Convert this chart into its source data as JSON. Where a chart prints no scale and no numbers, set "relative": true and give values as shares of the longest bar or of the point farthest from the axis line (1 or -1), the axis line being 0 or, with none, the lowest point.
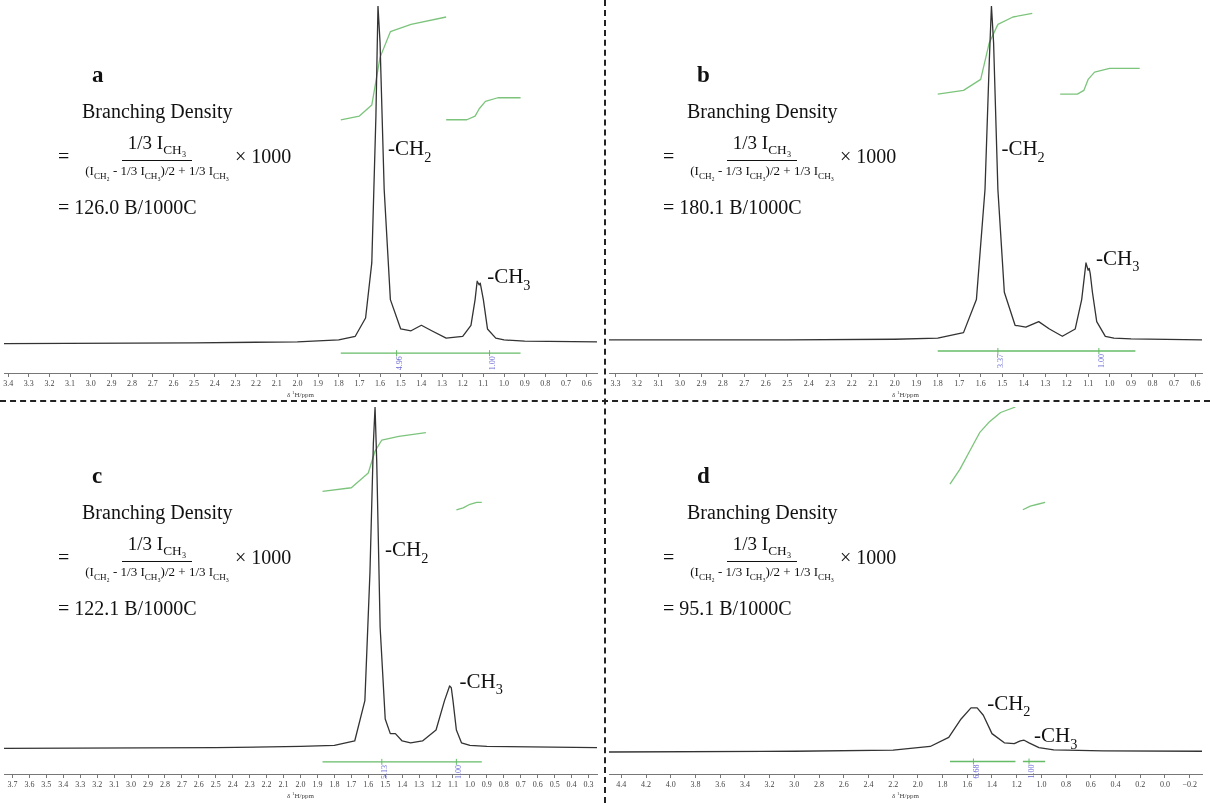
{
  "chart_data": [
    {
      "type": "line",
      "title": "a",
      "xlabel": "δ $^{1}$H/ppm",
      "relative": true,
      "marker": "none",
      "tick_labels": "x",
      "xlim": [
        3.42,
        0.55
      ],
      "xticks": [
        3.4,
        3.3,
        3.2,
        3.1,
        {
          "value": 3,
          "label": "3.0"
        },
        2.9,
        2.8,
        2.7,
        2.6,
        2.5,
        2.4,
        2.3,
        2.2,
        2.1,
        {
          "value": 2,
          "label": "2.0"
        },
        1.9,
        1.8,
        1.7,
        1.6,
        1.5,
        1.4,
        1.3,
        1.2,
        1.1,
        {
          "value": 1,
          "label": "1.0"
        },
        0.9,
        0.8,
        0.7,
        0.6
      ],
      "annotations": [
        "Branching Density",
        "=",
        "1/3 I$_{CH₃}$",
        "(I$_{CH₂}$ - 1/3 I$_{CH₃}$)/2 + 1/3 I$_{CH₃}$",
        "× 1000",
        "= 126.0 B/1000C",
        "-CH$_{2}$",
        "-CH$_{3}$",
        "4.96",
        "1.00"
      ],
      "series": [
        {
          "type": "line",
          "color": "#333333",
          "x": [
            3.42,
            2.5,
            2.0,
            1.8,
            1.72,
            1.67,
            1.64,
            1.62,
            1.61,
            1.6,
            1.58,
            1.55,
            1.5,
            1.45,
            1.4,
            1.35,
            1.28,
            1.2,
            1.16,
            1.14,
            1.13,
            1.12,
            1.115,
            1.11,
            1.1,
            1.08,
            1.04,
            1.0,
            0.9,
            0.55
          ],
          "values": [
            0.08,
            0.082,
            0.085,
            0.09,
            0.1,
            0.15,
            0.3,
            0.7,
            1,
            0.9,
            0.5,
            0.2,
            0.12,
            0.115,
            0.13,
            0.115,
            0.095,
            0.1,
            0.13,
            0.2,
            0.25,
            0.24,
            0.245,
            0.23,
            0.2,
            0.12,
            0.095,
            0.09,
            0.087,
            0.085
          ]
        },
        {
          "type": "line",
          "color": "#7cc47c",
          "x": [
            1.79,
            1.7,
            1.64,
            1.6,
            1.55,
            1.45,
            1.28
          ],
          "values": [
            0.69,
            0.7,
            0.73,
            0.86,
            0.93,
            0.95,
            0.97
          ]
        },
        {
          "type": "line",
          "color": "#7cc47c",
          "x": [
            1.28,
            1.18,
            1.14,
            1.12,
            1.09,
            1.03,
            0.92
          ],
          "values": [
            0.69,
            0.69,
            0.7,
            0.72,
            0.74,
            0.75,
            0.75
          ]
        },
        {
          "type": "line",
          "color": "#66bb66",
          "x": [
            1.79,
            1.52,
            1.25,
            1.07,
            0.92
          ],
          "values": [
            0.054,
            0.054,
            0.054,
            0.054,
            0.054
          ]
        }
      ]
    },
    {
      "type": "line",
      "title": "b",
      "xlabel": "δ $^{1}$H/ppm",
      "relative": true,
      "marker": "none",
      "tick_labels": "x",
      "xlim": [
        3.33,
        0.57
      ],
      "xticks": [
        3.3,
        3.2,
        3.1,
        {
          "value": 3,
          "label": "3.0"
        },
        2.9,
        2.8,
        2.7,
        2.6,
        2.5,
        2.4,
        2.3,
        2.2,
        2.1,
        {
          "value": 2,
          "label": "2.0"
        },
        1.9,
        1.8,
        1.7,
        1.6,
        1.5,
        1.4,
        1.3,
        1.2,
        1.1,
        {
          "value": 1,
          "label": "1.0"
        },
        0.9,
        0.8,
        0.7,
        0.6
      ],
      "annotations": [
        "Branching Density",
        "=",
        "1/3 I$_{CH₃}$",
        "(I$_{CH₂}$ - 1/3 I$_{CH₃}$)/2 + 1/3 I$_{CH₃}$",
        "× 1000",
        "= 180.1 B/1000C",
        "-CH$_{2}$",
        "-CH$_{3}$",
        "3.37",
        "1.00"
      ],
      "series": [
        {
          "type": "line",
          "color": "#333333",
          "x": [
            3.33,
            2.5,
            2.0,
            1.8,
            1.68,
            1.62,
            1.58,
            1.56,
            1.55,
            1.54,
            1.52,
            1.49,
            1.44,
            1.39,
            1.33,
            1.28,
            1.22,
            1.16,
            1.13,
            1.11,
            1.1,
            1.095,
            1.09,
            1.08,
            1.06,
            1.02,
            0.98,
            0.9,
            0.57
          ],
          "values": [
            0.09,
            0.09,
            0.092,
            0.095,
            0.11,
            0.2,
            0.5,
            0.85,
            1,
            0.9,
            0.5,
            0.22,
            0.13,
            0.125,
            0.14,
            0.12,
            0.1,
            0.12,
            0.2,
            0.3,
            0.28,
            0.285,
            0.27,
            0.22,
            0.14,
            0.1,
            0.095,
            0.093,
            0.09
          ]
        },
        {
          "type": "line",
          "color": "#7cc47c",
          "x": [
            1.8,
            1.68,
            1.6,
            1.56,
            1.52,
            1.45,
            1.36
          ],
          "values": [
            0.76,
            0.77,
            0.8,
            0.9,
            0.95,
            0.97,
            0.98
          ]
        },
        {
          "type": "line",
          "color": "#7cc47c",
          "x": [
            1.23,
            1.15,
            1.12,
            1.1,
            1.07,
            1.0,
            0.86
          ],
          "values": [
            0.76,
            0.76,
            0.77,
            0.8,
            0.82,
            0.83,
            0.83
          ]
        },
        {
          "type": "line",
          "color": "#66bb66",
          "x": [
            1.8,
            1.52,
            1.22,
            1.05,
            0.88
          ],
          "values": [
            0.06,
            0.06,
            0.06,
            0.06,
            0.06
          ]
        }
      ]
    },
    {
      "type": "line",
      "title": "c",
      "xlabel": "δ $^{1}$H/ppm",
      "relative": true,
      "marker": "none",
      "tick_labels": "x",
      "xlim": [
        3.75,
        0.25
      ],
      "xticks": [
        3.7,
        3.6,
        3.5,
        3.4,
        3.3,
        3.2,
        3.1,
        {
          "value": 3,
          "label": "3.0"
        },
        2.9,
        2.8,
        2.7,
        2.6,
        2.5,
        2.4,
        2.3,
        2.2,
        2.1,
        {
          "value": 2,
          "label": "2.0"
        },
        1.9,
        1.8,
        1.7,
        1.6,
        1.5,
        1.4,
        1.3,
        1.2,
        1.1,
        {
          "value": 1,
          "label": "1.0"
        },
        0.9,
        0.8,
        0.7,
        0.6,
        0.5,
        0.4,
        0.3
      ],
      "annotations": [
        "Branching Density",
        "=",
        "1/3 I$_{CH₃}$",
        "(I$_{CH₂}$ - 1/3 I$_{CH₃}$)/2 + 1/3 I$_{CH₃}$",
        "× 1000",
        "= 122.1 B/1000C",
        "-CH$_{2}$",
        "-CH$_{3}$",
        "5.13",
        "1.00"
      ],
      "series": [
        {
          "type": "line",
          "color": "#333333",
          "x": [
            3.75,
            2.5,
            2.0,
            1.8,
            1.68,
            1.62,
            1.59,
            1.57,
            1.56,
            1.55,
            1.53,
            1.5,
            1.47,
            1.44,
            1.4,
            1.35,
            1.28,
            1.2,
            1.15,
            1.12,
            1.11,
            1.1,
            1.08,
            1.05,
            1.0,
            0.9,
            0.25
          ],
          "values": [
            0.07,
            0.072,
            0.075,
            0.078,
            0.09,
            0.2,
            0.55,
            0.9,
            1,
            0.85,
            0.4,
            0.15,
            0.11,
            0.11,
            0.09,
            0.085,
            0.09,
            0.12,
            0.2,
            0.24,
            0.235,
            0.2,
            0.12,
            0.085,
            0.078,
            0.075,
            0.072
          ]
        },
        {
          "type": "line",
          "color": "#7cc47c",
          "x": [
            1.87,
            1.7,
            1.6,
            1.56,
            1.52,
            1.42,
            1.26
          ],
          "values": [
            0.77,
            0.78,
            0.82,
            0.88,
            0.91,
            0.92,
            0.93
          ]
        },
        {
          "type": "line",
          "color": "#7cc47c",
          "x": [
            1.08,
            1.04,
            1.0,
            0.96,
            0.93
          ],
          "values": [
            0.72,
            0.725,
            0.735,
            0.74,
            0.74
          ]
        },
        {
          "type": "line",
          "color": "#66bb66",
          "x": [
            1.87,
            1.52,
            1.27,
            1.08,
            0.93
          ],
          "values": [
            0.033,
            0.033,
            0.033,
            0.033,
            0.033
          ]
        }
      ]
    },
    {
      "type": "line",
      "title": "d",
      "xlabel": "δ $^{1}$H/ppm",
      "relative": true,
      "marker": "none",
      "tick_labels": "x",
      "xlim": [
        4.5,
        -0.3
      ],
      "xticks": [
        4.4,
        4.2,
        {
          "value": 4,
          "label": "4.0"
        },
        3.8,
        3.6,
        3.4,
        3.2,
        {
          "value": 3,
          "label": "3.0"
        },
        2.8,
        2.6,
        2.4,
        2.2,
        {
          "value": 2,
          "label": "2.0"
        },
        1.8,
        1.6,
        1.4,
        1.2,
        {
          "value": 1,
          "label": "1.0"
        },
        0.8,
        0.6,
        0.4,
        0.2,
        {
          "value": 0,
          "label": "0.0"
        },
        {
          "value": -0.2,
          "label": "−0.2"
        }
      ],
      "annotations": [
        "Branching Density",
        "=",
        "1/3 I$_{CH₃}$",
        "(I$_{CH₂}$ - 1/3 I$_{CH₃}$)/2 + 1/3 I$_{CH₃}$",
        "× 1000",
        "= 95.1 B/1000C",
        "-CH$_{2}$",
        "-CH$_{3}$",
        "6.68",
        "1.00"
      ],
      "series": [
        {
          "type": "line",
          "color": "#333333",
          "x": [
            4.5,
            3.0,
            2.2,
            1.9,
            1.75,
            1.65,
            1.57,
            1.52,
            1.47,
            1.4,
            1.3,
            1.22,
            1.17,
            1.14,
            1.1,
            1.02,
            0.9,
            0.5,
            -0.3
          ],
          "values": [
            0.06,
            0.062,
            0.065,
            0.075,
            0.1,
            0.15,
            0.18,
            0.18,
            0.16,
            0.11,
            0.085,
            0.083,
            0.09,
            0.092,
            0.085,
            0.072,
            0.066,
            0.063,
            0.062
          ]
        },
        {
          "type": "line",
          "color": "#7cc47c",
          "x": [
            1.74,
            1.66,
            1.58,
            1.5,
            1.42,
            1.33,
            1.21
          ],
          "values": [
            0.79,
            0.83,
            0.88,
            0.93,
            0.96,
            0.985,
            1
          ]
        },
        {
          "type": "line",
          "color": "#7cc47c",
          "x": [
            1.15,
            1.09,
            1.03,
            0.97
          ],
          "values": [
            0.72,
            0.73,
            0.735,
            0.74
          ]
        },
        {
          "type": "line",
          "color": "#66bb66",
          "x": [
            1.74,
            1.55,
            1.21,
            null,
            1.15,
            1.1,
            0.97
          ],
          "values": [
            0.034,
            0.034,
            0.034,
            null,
            0.034,
            0.034,
            0.034
          ]
        }
      ]
    }
  ]
}
